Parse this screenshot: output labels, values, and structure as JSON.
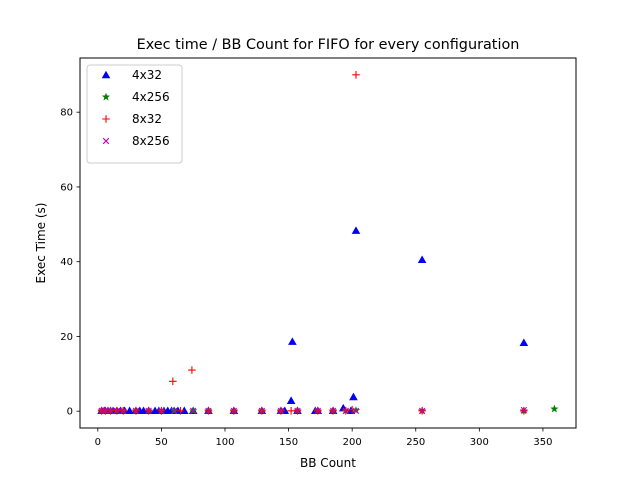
{
  "chart_data": {
    "type": "scatter",
    "title": "Exec time / BB Count for FIFO for every configuration",
    "xlabel": "BB Count",
    "ylabel": "Exec Time (s)",
    "xlim": [
      -14,
      376
    ],
    "ylim": [
      -4.5,
      94.5
    ],
    "xticks": [
      0,
      50,
      100,
      150,
      200,
      250,
      300,
      350
    ],
    "yticks": [
      0,
      20,
      40,
      60,
      80
    ],
    "grid": false,
    "legend_position": "upper-left",
    "series": [
      {
        "name": "4x32",
        "marker": "triangle",
        "color": "#0000ff",
        "points": [
          [
            3,
            0.1
          ],
          [
            5,
            0.1
          ],
          [
            6,
            0.1
          ],
          [
            8,
            0.1
          ],
          [
            10,
            0.1
          ],
          [
            12,
            0.1
          ],
          [
            15,
            0.1
          ],
          [
            18,
            0.1
          ],
          [
            21,
            0.1
          ],
          [
            25,
            0.1
          ],
          [
            30,
            0.1
          ],
          [
            33,
            0.1
          ],
          [
            36,
            0.1
          ],
          [
            40,
            0.1
          ],
          [
            45,
            0.1
          ],
          [
            48,
            0.1
          ],
          [
            52,
            0.1
          ],
          [
            55,
            0.1
          ],
          [
            58,
            0.1
          ],
          [
            60,
            0.1
          ],
          [
            63,
            0.1
          ],
          [
            68,
            0.1
          ],
          [
            75,
            0.1
          ],
          [
            87,
            0.1
          ],
          [
            107,
            0.1
          ],
          [
            129,
            0.1
          ],
          [
            144,
            0.1
          ],
          [
            147,
            0.1
          ],
          [
            152,
            2.8
          ],
          [
            153,
            18.6
          ],
          [
            157,
            0.1
          ],
          [
            171,
            0.1
          ],
          [
            173,
            0.1
          ],
          [
            185,
            0.1
          ],
          [
            193,
            0.8
          ],
          [
            199,
            0.1
          ],
          [
            201,
            3.8
          ],
          [
            203,
            48.3
          ],
          [
            255,
            40.5
          ],
          [
            335,
            18.3
          ]
        ]
      },
      {
        "name": "4x256",
        "marker": "star",
        "color": "#008000",
        "points": [
          [
            3,
            0.1
          ],
          [
            6,
            0.1
          ],
          [
            10,
            0.1
          ],
          [
            15,
            0.1
          ],
          [
            20,
            0.1
          ],
          [
            30,
            0.1
          ],
          [
            40,
            0.1
          ],
          [
            50,
            0.1
          ],
          [
            60,
            0.1
          ],
          [
            75,
            0.1
          ],
          [
            87,
            0.1
          ],
          [
            107,
            0.1
          ],
          [
            129,
            0.1
          ],
          [
            144,
            0.1
          ],
          [
            157,
            0.1
          ],
          [
            173,
            0.1
          ],
          [
            185,
            0.1
          ],
          [
            195,
            0.1
          ],
          [
            203,
            0.2
          ],
          [
            255,
            0.1
          ],
          [
            335,
            0.1
          ],
          [
            359,
            0.6
          ]
        ]
      },
      {
        "name": "8x32",
        "marker": "plus",
        "color": "#ff0000",
        "points": [
          [
            3,
            0.1
          ],
          [
            6,
            0.1
          ],
          [
            10,
            0.1
          ],
          [
            15,
            0.1
          ],
          [
            20,
            0.1
          ],
          [
            30,
            0.1
          ],
          [
            40,
            0.1
          ],
          [
            50,
            0.1
          ],
          [
            59,
            8.0
          ],
          [
            65,
            0.1
          ],
          [
            74,
            11.0
          ],
          [
            87,
            0.1
          ],
          [
            107,
            0.1
          ],
          [
            129,
            0.1
          ],
          [
            144,
            0.1
          ],
          [
            152,
            0.1
          ],
          [
            157,
            0.1
          ],
          [
            173,
            0.1
          ],
          [
            185,
            0.1
          ],
          [
            195,
            0.1
          ],
          [
            200,
            0.4
          ],
          [
            203,
            90.0
          ],
          [
            255,
            0.1
          ],
          [
            335,
            0.1
          ]
        ]
      },
      {
        "name": "8x256",
        "marker": "x",
        "color": "#bf00bf",
        "points": [
          [
            3,
            0.1
          ],
          [
            6,
            0.1
          ],
          [
            10,
            0.1
          ],
          [
            15,
            0.1
          ],
          [
            20,
            0.1
          ],
          [
            30,
            0.1
          ],
          [
            40,
            0.1
          ],
          [
            50,
            0.1
          ],
          [
            60,
            0.1
          ],
          [
            75,
            0.1
          ],
          [
            87,
            0.1
          ],
          [
            107,
            0.1
          ],
          [
            129,
            0.1
          ],
          [
            144,
            0.1
          ],
          [
            157,
            0.1
          ],
          [
            173,
            0.1
          ],
          [
            185,
            0.1
          ],
          [
            195,
            0.1
          ],
          [
            203,
            0.1
          ],
          [
            255,
            0.1
          ],
          [
            335,
            0.3
          ]
        ]
      }
    ]
  }
}
